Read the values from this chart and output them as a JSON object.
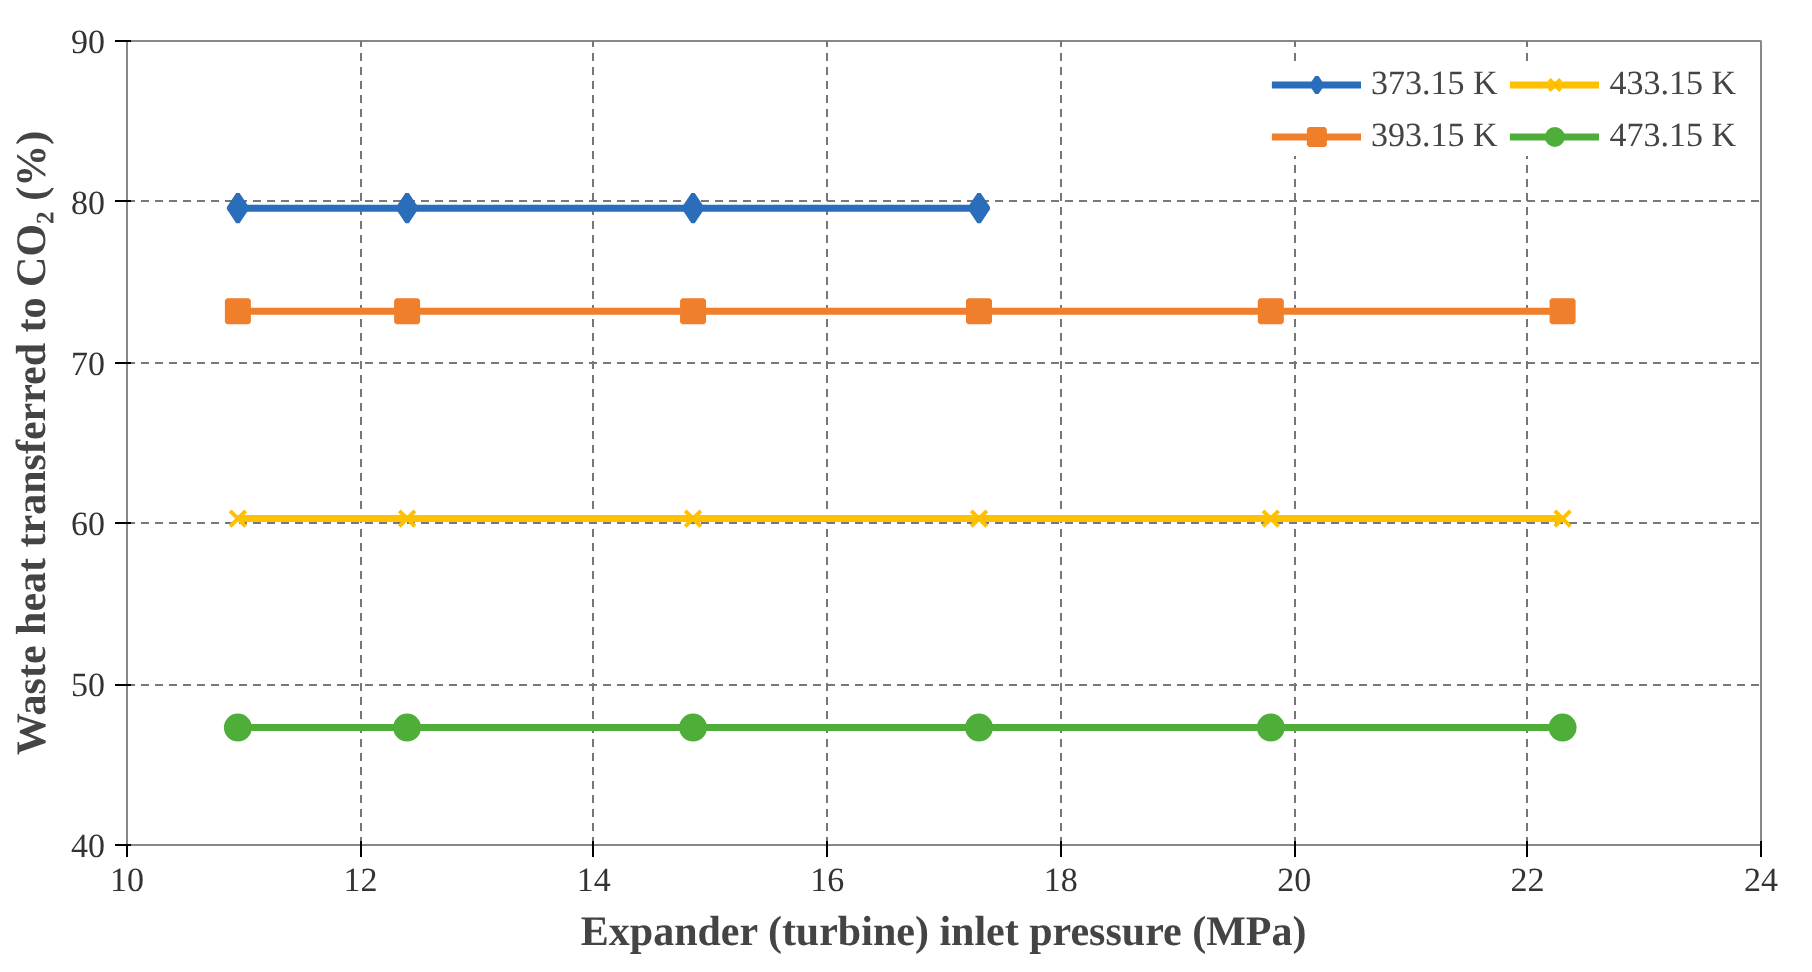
{
  "chart_data": {
    "type": "line",
    "xlabel": "Expander (turbine) inlet pressure (MPa)",
    "ylabel": "Waste heat transferred to CO₂ (%)",
    "xlim": [
      10,
      24
    ],
    "xticks": [
      10,
      12,
      14,
      16,
      18,
      20,
      22,
      24
    ],
    "ylim": [
      40,
      90
    ],
    "yticks": [
      40,
      50,
      60,
      70,
      80,
      90
    ],
    "grid": true,
    "legend": "top right",
    "line_style": "solid",
    "series": [
      {
        "name": "373.15 K",
        "color": "#2a6ebb",
        "marker": "diamond",
        "x": [
          10.95,
          12.4,
          14.85,
          17.3
        ],
        "values": [
          79.6,
          79.6,
          79.6,
          79.6
        ]
      },
      {
        "name": "393.15 K",
        "color": "#f07f2c",
        "marker": "square",
        "x": [
          10.95,
          12.4,
          14.85,
          17.3,
          19.8,
          22.3
        ],
        "values": [
          73.2,
          73.2,
          73.2,
          73.2,
          73.2,
          73.2
        ]
      },
      {
        "name": "433.15 K",
        "color": "#ffc000",
        "marker": "cross",
        "x": [
          10.95,
          12.4,
          14.85,
          17.3,
          19.8,
          22.3
        ],
        "values": [
          60.3,
          60.3,
          60.3,
          60.3,
          60.3,
          60.3
        ]
      },
      {
        "name": "473.15 K",
        "color": "#4fae3a",
        "marker": "circle",
        "x": [
          10.95,
          12.4,
          14.85,
          17.3,
          19.8,
          22.3
        ],
        "values": [
          47.3,
          47.3,
          47.3,
          47.3,
          47.3,
          47.3
        ]
      }
    ]
  }
}
